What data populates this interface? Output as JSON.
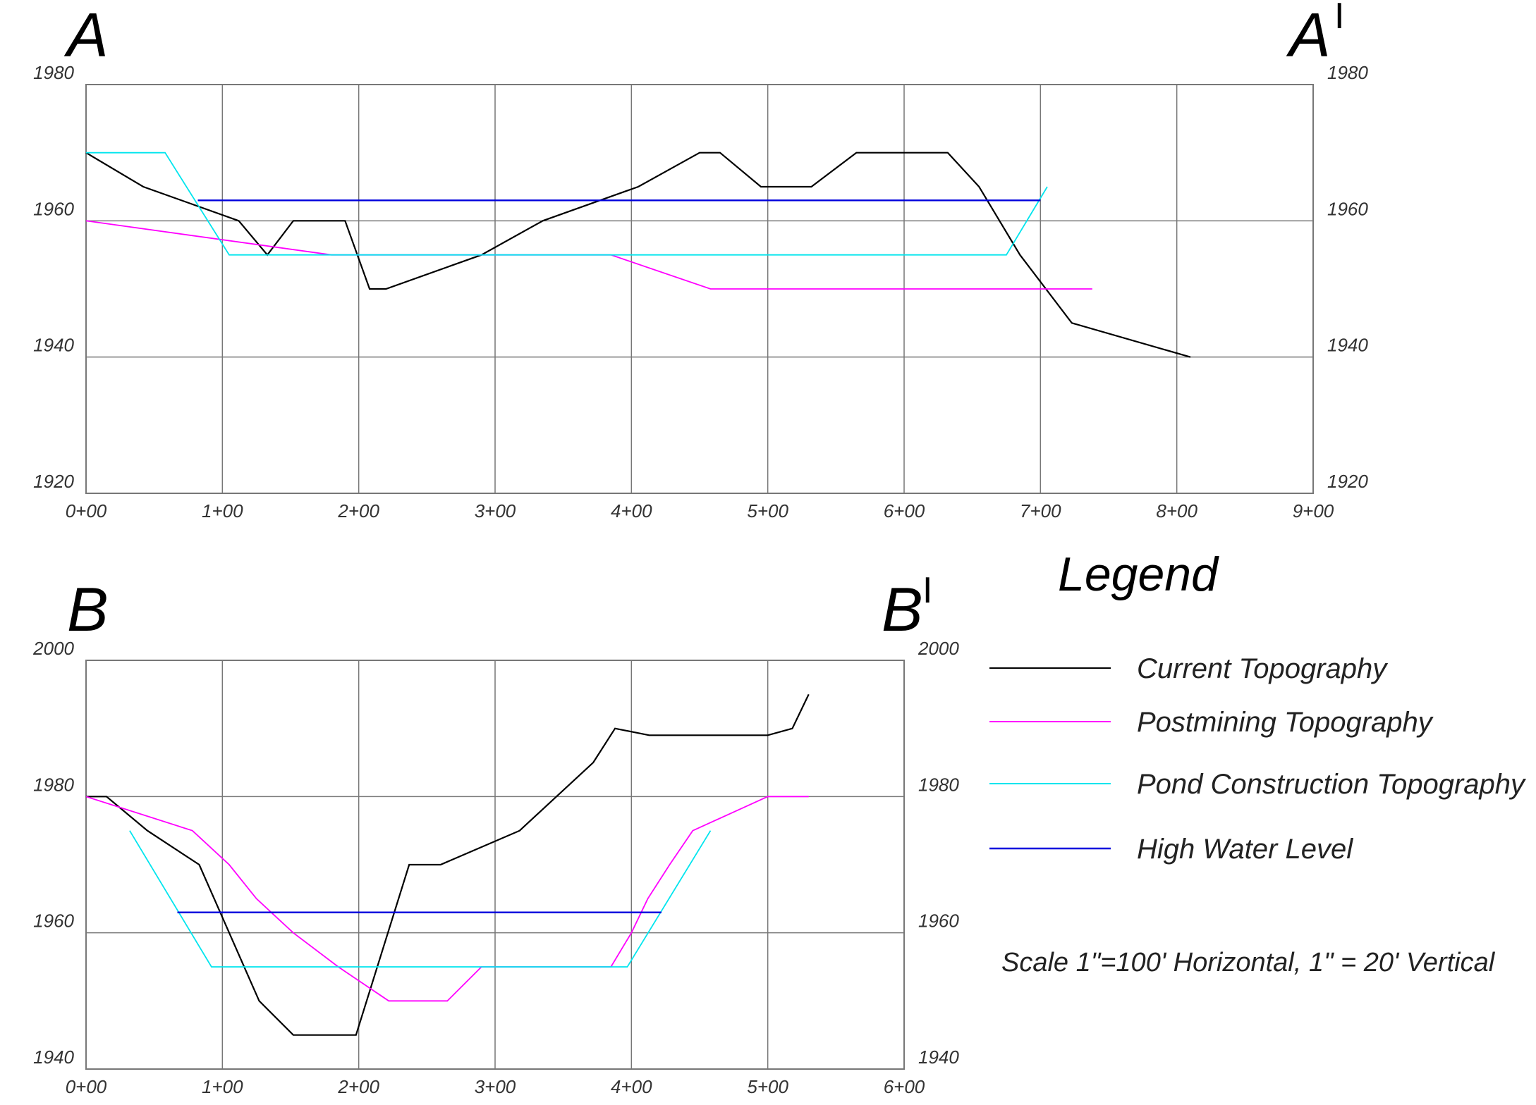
{
  "chart_data": [
    {
      "type": "line",
      "section_label": "A",
      "section_end_label": "A",
      "section_end_prime": "I",
      "x_ticks": [
        "0+00",
        "1+00",
        "2+00",
        "3+00",
        "4+00",
        "5+00",
        "6+00",
        "7+00",
        "8+00",
        "9+00"
      ],
      "y_ticks": [
        "1920",
        "1940",
        "1960",
        "1980"
      ],
      "xlim": [
        0,
        900
      ],
      "ylim": [
        1920,
        1980
      ],
      "grid": true,
      "series": [
        {
          "name": "Current Topography",
          "color": "#000000",
          "x": [
            0,
            42,
            112,
            133,
            152,
            190,
            208,
            220,
            290,
            335,
            405,
            450,
            465,
            495,
            510,
            532,
            565,
            585,
            605,
            632,
            655,
            685,
            723,
            810
          ],
          "y": [
            1970,
            1965,
            1960,
            1955,
            1960,
            1960,
            1950,
            1950,
            1955,
            1960,
            1965,
            1970,
            1970,
            1965,
            1965,
            1965,
            1970,
            1970,
            1970,
            1970,
            1965,
            1955,
            1945,
            1940
          ]
        },
        {
          "name": "Postmining Topography",
          "color": "#ff00ff",
          "x": [
            0,
            180,
            385,
            458,
            738
          ],
          "y": [
            1960,
            1955,
            1955,
            1950,
            1950
          ]
        },
        {
          "name": "Pond Construction Topography",
          "color": "#00e5ee",
          "x": [
            0,
            58,
            105,
            675,
            705
          ],
          "y": [
            1970,
            1970,
            1955,
            1955,
            1965
          ]
        },
        {
          "name": "High Water Level",
          "color": "#0000dd",
          "x": [
            82,
            700
          ],
          "y": [
            1963,
            1963
          ]
        }
      ]
    },
    {
      "type": "line",
      "section_label": "B",
      "section_end_label": "B",
      "section_end_prime": "I",
      "x_ticks": [
        "0+00",
        "1+00",
        "2+00",
        "3+00",
        "4+00",
        "5+00",
        "6+00"
      ],
      "y_ticks": [
        "1940",
        "1960",
        "1980",
        "2000"
      ],
      "xlim": [
        0,
        600
      ],
      "ylim": [
        1940,
        2000
      ],
      "grid": true,
      "series": [
        {
          "name": "Current Topography",
          "color": "#000000",
          "x": [
            0,
            15,
            45,
            83,
            127,
            152,
            198,
            237,
            260,
            318,
            372,
            388,
            413,
            500,
            518,
            530
          ],
          "y": [
            1980,
            1980,
            1975,
            1970,
            1950,
            1945,
            1945,
            1970,
            1970,
            1975,
            1985,
            1990,
            1989,
            1989,
            1990,
            1995
          ]
        },
        {
          "name": "Postmining Topography",
          "color": "#ff00ff",
          "x": [
            0,
            78,
            105,
            125,
            152,
            185,
            222,
            265,
            290,
            385,
            400,
            412,
            428,
            445,
            500,
            530
          ],
          "y": [
            1980,
            1975,
            1970,
            1965,
            1960,
            1955,
            1950,
            1950,
            1955,
            1955,
            1960,
            1965,
            1970,
            1975,
            1980,
            1980
          ]
        },
        {
          "name": "Pond Construction Topography",
          "color": "#00e5ee",
          "x": [
            32,
            92,
            397,
            458
          ],
          "y": [
            1975,
            1955,
            1955,
            1975
          ]
        },
        {
          "name": "High Water Level",
          "color": "#0000dd",
          "x": [
            67,
            422
          ],
          "y": [
            1963,
            1963
          ]
        }
      ]
    }
  ],
  "legend": {
    "title": "Legend",
    "entries": [
      {
        "label": "Current Topography",
        "color": "#000000"
      },
      {
        "label": "Postmining Topography",
        "color": "#ff00ff"
      },
      {
        "label": "Pond Construction Topography",
        "color": "#00e5ee"
      },
      {
        "label": "High Water Level",
        "color": "#0000dd"
      }
    ],
    "placement": "right of section B"
  },
  "scale_note": "Scale 1\"=100' Horizontal, 1\" = 20' Vertical"
}
